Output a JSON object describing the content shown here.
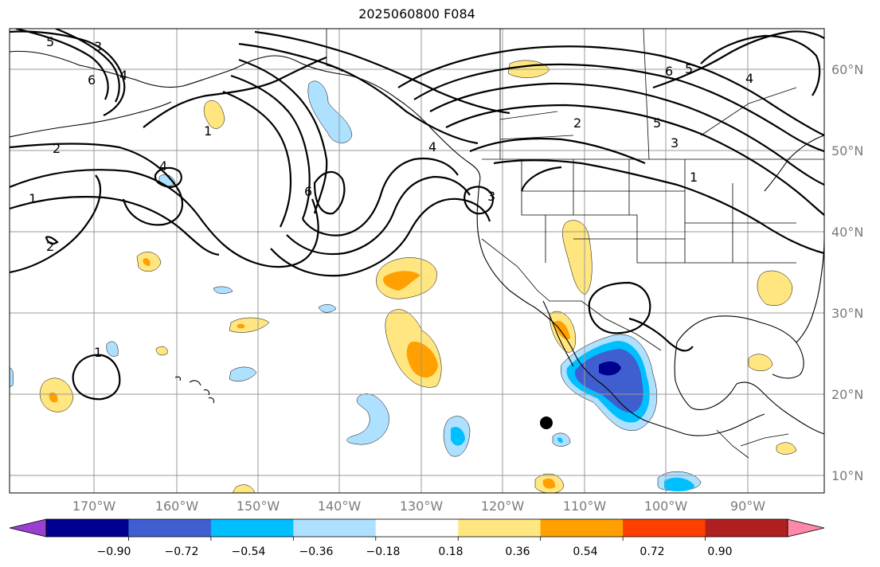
{
  "title": "2025060800 F084",
  "map": {
    "lon_range": [
      -180,
      -80
    ],
    "lat_range": [
      8,
      66
    ],
    "lon_labels": [
      "170°W",
      "160°W",
      "150°W",
      "140°W",
      "130°W",
      "120°W",
      "110°W",
      "100°W",
      "90°W"
    ],
    "lat_labels": [
      "60°N",
      "50°N",
      "40°N",
      "30°N",
      "20°N",
      "10°N"
    ],
    "contour_labels": [
      "5",
      "3",
      "6",
      "4",
      "2",
      "1",
      "4",
      "1",
      "6",
      "3",
      "4",
      "2",
      "5",
      "3",
      "6",
      "5",
      "4",
      "1",
      "1",
      "2"
    ]
  },
  "colorbar": {
    "ticks": [
      "−0.90",
      "−0.72",
      "−0.54",
      "−0.36",
      "−0.18",
      "0.18",
      "0.36",
      "0.54",
      "0.72",
      "0.90"
    ],
    "colors": [
      "#9a3fd0",
      "#000090",
      "#3f5fd0",
      "#00bfff",
      "#aee0ff",
      "#ffffff",
      "#ffe680",
      "#ffa000",
      "#ff3f00",
      "#b02020",
      "#ff88aa"
    ]
  }
}
